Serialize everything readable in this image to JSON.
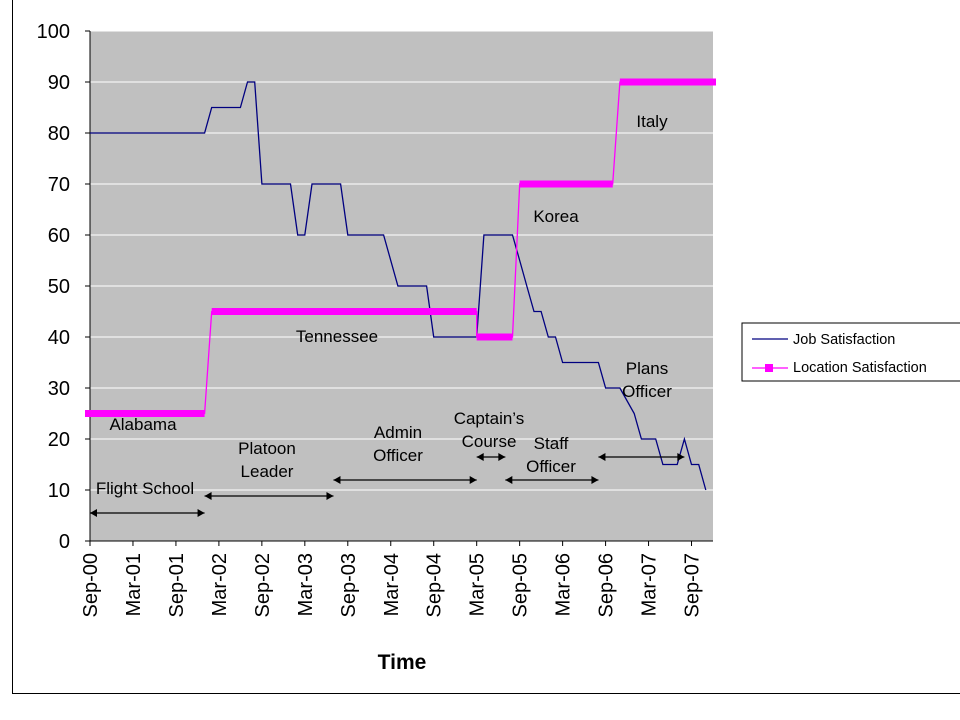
{
  "chart_data": {
    "type": "line",
    "xlabel": "Time",
    "ylabel": "",
    "ylim": [
      0,
      100
    ],
    "yticks": [
      0,
      10,
      20,
      30,
      40,
      50,
      60,
      70,
      80,
      90,
      100
    ],
    "xlim": [
      "2000-09",
      "2007-12"
    ],
    "x_tick_labels": [
      "Sep-00",
      "Mar-01",
      "Sep-01",
      "Mar-02",
      "Sep-02",
      "Mar-03",
      "Sep-03",
      "Mar-04",
      "Sep-04",
      "Mar-05",
      "Sep-05",
      "Mar-06",
      "Sep-06",
      "Mar-07",
      "Sep-07"
    ],
    "grid": true,
    "legend_position": "right",
    "colors": {
      "plot_background": "#c0c0c0",
      "gridline": "#ffffff",
      "job_line": "#000080",
      "location_line": "#ff00ff"
    },
    "series": [
      {
        "name": "Job Satisfaction",
        "points": [
          [
            "2000-09",
            80
          ],
          [
            "2002-01",
            80
          ],
          [
            "2002-02",
            85
          ],
          [
            "2002-06",
            85
          ],
          [
            "2002-07",
            90
          ],
          [
            "2002-08",
            90
          ],
          [
            "2002-09",
            70
          ],
          [
            "2003-01",
            70
          ],
          [
            "2003-02",
            60
          ],
          [
            "2003-03",
            60
          ],
          [
            "2003-04",
            70
          ],
          [
            "2003-08",
            70
          ],
          [
            "2003-09",
            60
          ],
          [
            "2004-02",
            60
          ],
          [
            "2004-04",
            50
          ],
          [
            "2004-08",
            50
          ],
          [
            "2004-09",
            40
          ],
          [
            "2005-03",
            40
          ],
          [
            "2005-04",
            60
          ],
          [
            "2005-08",
            60
          ],
          [
            "2005-09",
            55
          ],
          [
            "2005-10",
            50
          ],
          [
            "2005-11",
            45
          ],
          [
            "2005-12",
            45
          ],
          [
            "2006-01",
            40
          ],
          [
            "2006-02",
            40
          ],
          [
            "2006-03",
            35
          ],
          [
            "2006-08",
            35
          ],
          [
            "2006-09",
            30
          ],
          [
            "2006-11",
            30
          ],
          [
            "2007-01",
            25
          ],
          [
            "2007-02",
            20
          ],
          [
            "2007-04",
            20
          ],
          [
            "2007-05",
            15
          ],
          [
            "2007-07",
            15
          ],
          [
            "2007-08",
            20
          ],
          [
            "2007-09",
            15
          ],
          [
            "2007-10",
            15
          ],
          [
            "2007-11",
            10
          ]
        ]
      },
      {
        "name": "Location Satisfaction",
        "points": [
          [
            "2000-09",
            25
          ],
          [
            "2002-01",
            25
          ],
          [
            "2002-02",
            45
          ],
          [
            "2005-03",
            45
          ],
          [
            "2005-03",
            40
          ],
          [
            "2005-08",
            40
          ],
          [
            "2005-09",
            70
          ],
          [
            "2006-10",
            70
          ],
          [
            "2006-11",
            90
          ],
          [
            "2007-12",
            90
          ]
        ]
      }
    ],
    "annotations": [
      {
        "lines": [
          "Alabama"
        ]
      },
      {
        "lines": [
          "Tennessee"
        ]
      },
      {
        "lines": [
          "Korea"
        ]
      },
      {
        "lines": [
          "Italy"
        ]
      },
      {
        "lines": [
          "Flight School"
        ]
      },
      {
        "lines": [
          "Platoon",
          "Leader"
        ]
      },
      {
        "lines": [
          "Admin",
          "Officer"
        ]
      },
      {
        "lines": [
          "Captain’s",
          "Course"
        ]
      },
      {
        "lines": [
          "Staff",
          "Officer"
        ]
      },
      {
        "lines": [
          "Plans",
          "Officer"
        ]
      }
    ],
    "assignment_arrows": [
      {
        "label": "Flight School",
        "from": "2000-09",
        "to": "2002-01"
      },
      {
        "label": "Platoon Leader",
        "from": "2002-01",
        "to": "2003-07"
      },
      {
        "label": "Admin Officer",
        "from": "2003-07",
        "to": "2005-03"
      },
      {
        "label": "Captain’s Course",
        "from": "2005-03",
        "to": "2005-07"
      },
      {
        "label": "Staff Officer",
        "from": "2005-07",
        "to": "2006-08"
      },
      {
        "label": "Plans Officer",
        "from": "2006-08",
        "to": "2007-08"
      }
    ]
  }
}
